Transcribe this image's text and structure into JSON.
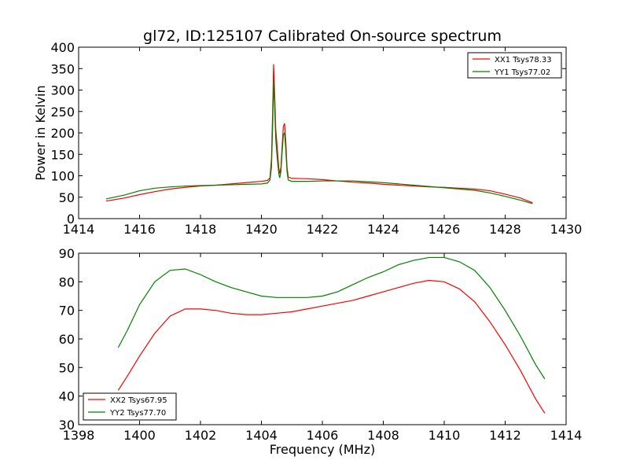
{
  "figure": {
    "title": "gl72, ID:125107 Calibrated On-source spectrum"
  },
  "chart_data": [
    {
      "type": "line",
      "title": "gl72, ID:125107 Calibrated On-source spectrum",
      "xlabel": "",
      "ylabel": "Power in Kelvin",
      "xlim": [
        1414,
        1430
      ],
      "ylim": [
        0,
        400
      ],
      "xticks": [
        1414,
        1416,
        1418,
        1420,
        1422,
        1424,
        1426,
        1428,
        1430
      ],
      "yticks": [
        0,
        50,
        100,
        150,
        200,
        250,
        300,
        350,
        400
      ],
      "legend_position": "top-right",
      "grid": false,
      "series": [
        {
          "name": "XX1 Tsys78.33",
          "color": "#ff0000",
          "points": [
            [
              1414.9,
              41
            ],
            [
              1415.5,
              48
            ],
            [
              1416,
              56
            ],
            [
              1416.5,
              63
            ],
            [
              1417,
              69
            ],
            [
              1417.5,
              73
            ],
            [
              1418,
              76
            ],
            [
              1418.5,
              78
            ],
            [
              1419,
              81
            ],
            [
              1419.5,
              84
            ],
            [
              1420,
              87
            ],
            [
              1420.2,
              89
            ],
            [
              1420.28,
              95
            ],
            [
              1420.33,
              140
            ],
            [
              1420.37,
              255
            ],
            [
              1420.4,
              360
            ],
            [
              1420.43,
              300
            ],
            [
              1420.47,
              210
            ],
            [
              1420.52,
              165
            ],
            [
              1420.57,
              118
            ],
            [
              1420.6,
              105
            ],
            [
              1420.64,
              120
            ],
            [
              1420.68,
              170
            ],
            [
              1420.72,
              215
            ],
            [
              1420.76,
              222
            ],
            [
              1420.8,
              180
            ],
            [
              1420.84,
              120
            ],
            [
              1420.88,
              97
            ],
            [
              1421,
              94
            ],
            [
              1421.5,
              93
            ],
            [
              1422,
              91
            ],
            [
              1422.5,
              88
            ],
            [
              1423,
              85
            ],
            [
              1423.5,
              83
            ],
            [
              1424,
              80
            ],
            [
              1424.5,
              78
            ],
            [
              1425,
              76
            ],
            [
              1425.5,
              74
            ],
            [
              1426,
              73
            ],
            [
              1426.5,
              71
            ],
            [
              1427,
              69
            ],
            [
              1427.5,
              65
            ],
            [
              1428,
              57
            ],
            [
              1428.5,
              48
            ],
            [
              1428.9,
              37
            ]
          ]
        },
        {
          "name": "YY1 Tsys77.02",
          "color": "#008000",
          "points": [
            [
              1414.9,
              46
            ],
            [
              1415.5,
              55
            ],
            [
              1416,
              65
            ],
            [
              1416.5,
              71
            ],
            [
              1417,
              74
            ],
            [
              1417.5,
              76
            ],
            [
              1418,
              77
            ],
            [
              1418.5,
              78
            ],
            [
              1419,
              79
            ],
            [
              1419.5,
              80
            ],
            [
              1420,
              81
            ],
            [
              1420.2,
              83
            ],
            [
              1420.28,
              90
            ],
            [
              1420.33,
              120
            ],
            [
              1420.37,
              220
            ],
            [
              1420.4,
              320
            ],
            [
              1420.43,
              270
            ],
            [
              1420.47,
              185
            ],
            [
              1420.52,
              140
            ],
            [
              1420.57,
              105
            ],
            [
              1420.6,
              95
            ],
            [
              1420.64,
              110
            ],
            [
              1420.68,
              155
            ],
            [
              1420.72,
              195
            ],
            [
              1420.76,
              200
            ],
            [
              1420.8,
              160
            ],
            [
              1420.84,
              110
            ],
            [
              1420.88,
              90
            ],
            [
              1421,
              87
            ],
            [
              1421.5,
              87
            ],
            [
              1422,
              88
            ],
            [
              1422.5,
              88
            ],
            [
              1423,
              88
            ],
            [
              1423.5,
              86
            ],
            [
              1424,
              84
            ],
            [
              1424.5,
              81
            ],
            [
              1425,
              78
            ],
            [
              1425.5,
              75
            ],
            [
              1426,
              72
            ],
            [
              1426.5,
              69
            ],
            [
              1427,
              66
            ],
            [
              1427.5,
              60
            ],
            [
              1428,
              52
            ],
            [
              1428.5,
              43
            ],
            [
              1428.9,
              35
            ]
          ]
        }
      ]
    },
    {
      "type": "line",
      "title": "",
      "xlabel": "Frequency (MHz)",
      "ylabel": "",
      "xlim": [
        1398,
        1414
      ],
      "ylim": [
        30,
        90
      ],
      "xticks": [
        1398,
        1400,
        1402,
        1404,
        1406,
        1408,
        1410,
        1412,
        1414
      ],
      "yticks": [
        30,
        40,
        50,
        60,
        70,
        80,
        90
      ],
      "legend_position": "bottom-left",
      "grid": false,
      "series": [
        {
          "name": "XX2 Tsys67.95",
          "color": "#ff0000",
          "points": [
            [
              1399.3,
              42
            ],
            [
              1399.6,
              47
            ],
            [
              1400,
              54
            ],
            [
              1400.5,
              62
            ],
            [
              1401,
              68
            ],
            [
              1401.5,
              70.5
            ],
            [
              1402,
              70.5
            ],
            [
              1402.5,
              70
            ],
            [
              1403,
              69
            ],
            [
              1403.5,
              68.5
            ],
            [
              1404,
              68.5
            ],
            [
              1404.5,
              69
            ],
            [
              1405,
              69.5
            ],
            [
              1405.5,
              70.5
            ],
            [
              1406,
              71.5
            ],
            [
              1406.5,
              72.5
            ],
            [
              1407,
              73.5
            ],
            [
              1407.5,
              75
            ],
            [
              1408,
              76.5
            ],
            [
              1408.5,
              78
            ],
            [
              1409,
              79.5
            ],
            [
              1409.5,
              80.5
            ],
            [
              1410,
              80
            ],
            [
              1410.5,
              77.5
            ],
            [
              1411,
              73
            ],
            [
              1411.5,
              66
            ],
            [
              1412,
              58
            ],
            [
              1412.5,
              49
            ],
            [
              1413,
              39
            ],
            [
              1413.3,
              34
            ]
          ]
        },
        {
          "name": "YY2 Tsys77.70",
          "color": "#008000",
          "points": [
            [
              1399.3,
              57
            ],
            [
              1399.6,
              63
            ],
            [
              1400,
              72
            ],
            [
              1400.5,
              80
            ],
            [
              1401,
              84
            ],
            [
              1401.5,
              84.5
            ],
            [
              1402,
              82.5
            ],
            [
              1402.5,
              80
            ],
            [
              1403,
              78
            ],
            [
              1403.5,
              76.5
            ],
            [
              1404,
              75
            ],
            [
              1404.5,
              74.5
            ],
            [
              1405,
              74.5
            ],
            [
              1405.5,
              74.5
            ],
            [
              1406,
              75
            ],
            [
              1406.5,
              76.5
            ],
            [
              1407,
              79
            ],
            [
              1407.5,
              81.5
            ],
            [
              1408,
              83.5
            ],
            [
              1408.5,
              86
            ],
            [
              1409,
              87.5
            ],
            [
              1409.5,
              88.5
            ],
            [
              1410,
              88.5
            ],
            [
              1410.5,
              87
            ],
            [
              1411,
              84
            ],
            [
              1411.5,
              78
            ],
            [
              1412,
              70
            ],
            [
              1412.5,
              61
            ],
            [
              1413,
              51
            ],
            [
              1413.3,
              46
            ]
          ]
        }
      ]
    }
  ]
}
